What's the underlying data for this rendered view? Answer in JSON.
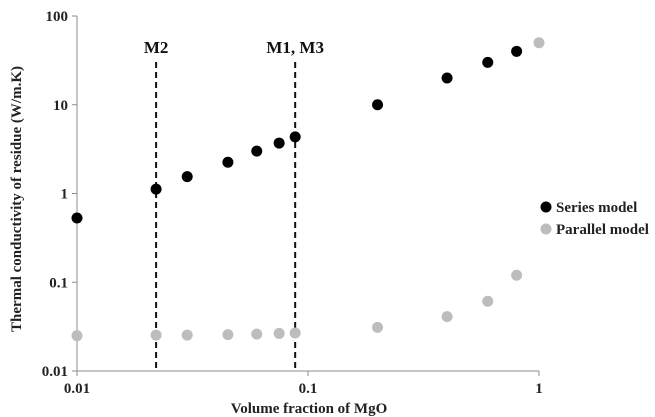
{
  "chart_data": {
    "type": "scatter",
    "title": "",
    "xlabel": "Volume fraction of MgO",
    "ylabel": "Thermal conductivity of residue (W/m.K)",
    "xscale": "log",
    "yscale": "log",
    "xlim": [
      0.01,
      1
    ],
    "ylim": [
      0.01,
      100
    ],
    "x_ticks": [
      "0.01",
      "0.1",
      "1"
    ],
    "y_ticks": [
      "0.01",
      "0.1",
      "1",
      "10",
      "100"
    ],
    "grid": false,
    "legend_position": "right",
    "series": [
      {
        "name": "Series model",
        "color": "#000000",
        "points": [
          {
            "x": 0.01,
            "y": 0.53
          },
          {
            "x": 0.022,
            "y": 1.12
          },
          {
            "x": 0.03,
            "y": 1.55
          },
          {
            "x": 0.045,
            "y": 2.25
          },
          {
            "x": 0.06,
            "y": 3.0
          },
          {
            "x": 0.075,
            "y": 3.7
          },
          {
            "x": 0.088,
            "y": 4.35
          },
          {
            "x": 0.2,
            "y": 10.0
          },
          {
            "x": 0.4,
            "y": 20.0
          },
          {
            "x": 0.6,
            "y": 30.0
          },
          {
            "x": 0.8,
            "y": 40.0
          }
        ]
      },
      {
        "name": "Parallel model",
        "color": "#bdbdbd",
        "points": [
          {
            "x": 0.01,
            "y": 0.025
          },
          {
            "x": 0.022,
            "y": 0.0254
          },
          {
            "x": 0.03,
            "y": 0.0254
          },
          {
            "x": 0.045,
            "y": 0.0257
          },
          {
            "x": 0.06,
            "y": 0.026
          },
          {
            "x": 0.075,
            "y": 0.0265
          },
          {
            "x": 0.088,
            "y": 0.0268
          },
          {
            "x": 0.2,
            "y": 0.031
          },
          {
            "x": 0.4,
            "y": 0.041
          },
          {
            "x": 0.6,
            "y": 0.061
          },
          {
            "x": 0.8,
            "y": 0.12
          },
          {
            "x": 1.0,
            "y": 50.0
          }
        ]
      }
    ],
    "vlines": [
      {
        "x": 0.022,
        "label": "M2",
        "style": "dashed"
      },
      {
        "x": 0.088,
        "label": "M1, M3",
        "style": "dashed"
      }
    ]
  }
}
